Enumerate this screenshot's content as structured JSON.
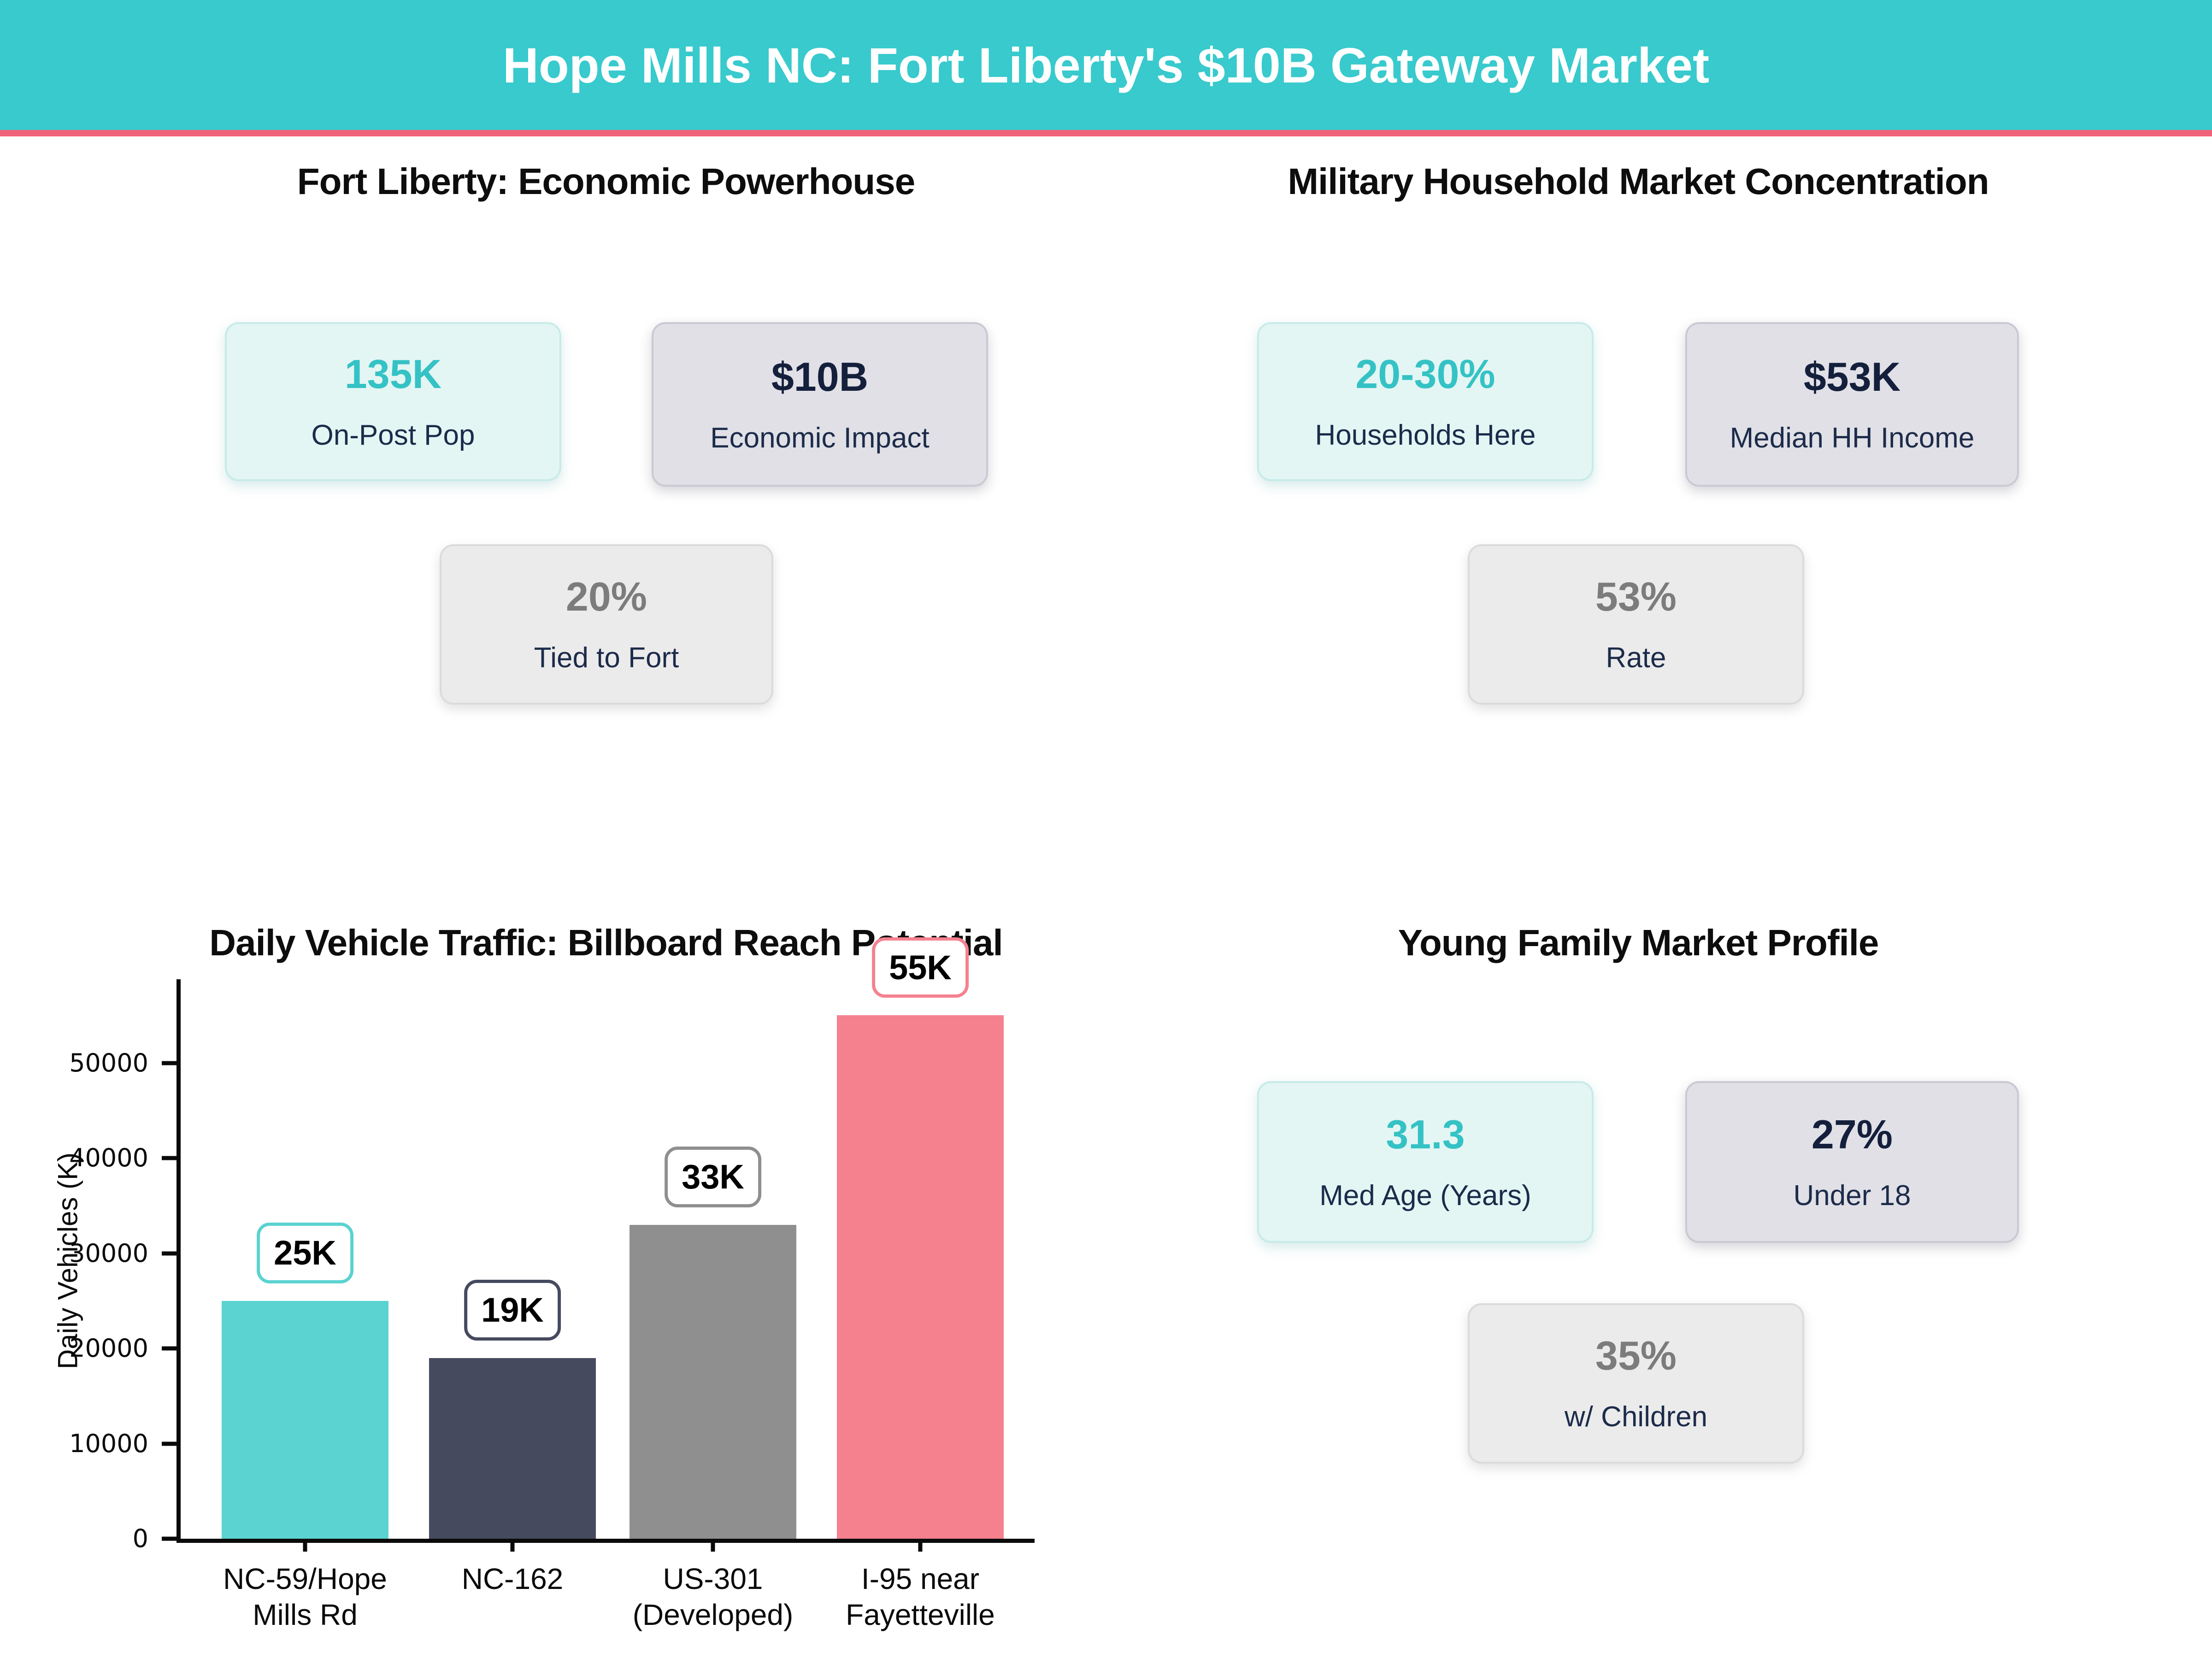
{
  "header": {
    "title": "Hope Mills NC: Fort Liberty's $10B Gateway Market"
  },
  "palette": {
    "header_bg": "#38CACD",
    "accent_line": "#F0617B",
    "mint_bg": "#E3F6F4",
    "mint_border": "#C7EBE9",
    "lavender_bg": "#E0E0E6",
    "lavender_border": "#C9C9D3",
    "graycard_bg": "#EBEBEB",
    "graycard_border": "#DBDBDB",
    "teal_text": "#35C2C5",
    "navy_text": "#1C2B4A",
    "navy_dark": "#141F3C",
    "gray_text": "#7C7C7C"
  },
  "sections": {
    "fort_liberty": {
      "title": "Fort Liberty: Economic Powerhouse",
      "cards": [
        {
          "value": "135K",
          "label": "On-Post Pop"
        },
        {
          "value": "$10B",
          "label": "Economic Impact"
        },
        {
          "value": "20%",
          "label": "Tied to Fort"
        }
      ]
    },
    "military_household": {
      "title": "Military Household Market Concentration",
      "cards": [
        {
          "value": "20-30%",
          "label": "Households Here"
        },
        {
          "value": "$53K",
          "label": "Median HH Income"
        },
        {
          "value": "53%",
          "label": "Rate"
        }
      ]
    },
    "young_family": {
      "title": "Young Family Market Profile",
      "cards": [
        {
          "value": "31.3",
          "label": "Med Age (Years)"
        },
        {
          "value": "27%",
          "label": "Under 18"
        },
        {
          "value": "35%",
          "label": "w/ Children"
        }
      ]
    }
  },
  "chart_data": {
    "type": "bar",
    "title": "Daily Vehicle Traffic: Billboard Reach Potential",
    "xlabel": "",
    "ylabel": "Daily Vehicles (K)",
    "categories": [
      "NC-59/Hope\nMills Rd",
      "NC-162",
      "US-301\n(Developed)",
      "I-95 near\nFayetteville"
    ],
    "values": [
      25000,
      19000,
      33000,
      55000
    ],
    "bar_labels": [
      "25K",
      "19K",
      "33K",
      "55K"
    ],
    "colors": [
      "#5AD3D1",
      "#464A5E",
      "#8F8F8F",
      "#F5818F"
    ],
    "yticks": [
      0,
      10000,
      20000,
      30000,
      40000,
      50000
    ],
    "ylim": [
      0,
      58800
    ],
    "grid": false,
    "legend": null
  }
}
